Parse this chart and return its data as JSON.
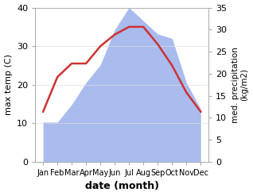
{
  "months": [
    "Jan",
    "Feb",
    "Mar",
    "Apr",
    "May",
    "Jun",
    "Jul",
    "Aug",
    "Sep",
    "Oct",
    "Nov",
    "Dec"
  ],
  "temperature": [
    13,
    22,
    25.5,
    25.5,
    30,
    33,
    35,
    35,
    30.5,
    25,
    18,
    13
  ],
  "precipitation": [
    9,
    9,
    13,
    18,
    22,
    30,
    35,
    32,
    29,
    28,
    18,
    12
  ],
  "temp_color": "#cc3333",
  "precip_color": "#aabbee",
  "xlabel": "date (month)",
  "ylabel_left": "max temp (C)",
  "ylabel_right": "med. precipitation\n(kg/m2)",
  "ylim_left": [
    0,
    40
  ],
  "ylim_right": [
    0,
    35
  ],
  "yticks_left": [
    0,
    10,
    20,
    30,
    40
  ],
  "yticks_right": [
    0,
    5,
    10,
    15,
    20,
    25,
    30,
    35
  ],
  "background_color": "#ffffff",
  "figsize": [
    3.18,
    2.47
  ],
  "dpi": 100
}
